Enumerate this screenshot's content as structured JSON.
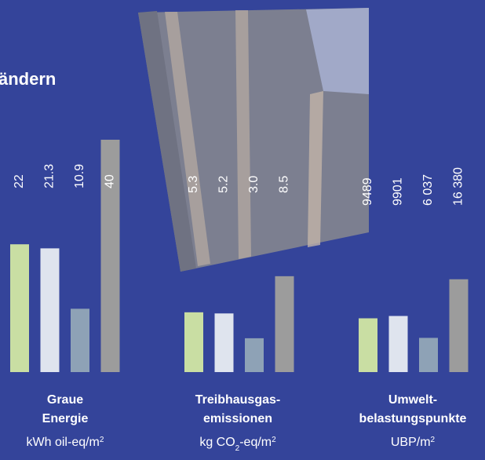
{
  "title": "ändern",
  "chart_data": [
    {
      "type": "bar",
      "title": [
        "Graue",
        "Energie"
      ],
      "unit": [
        "kWh oil-eq/m",
        "2"
      ],
      "values": [
        22,
        21.3,
        10.9,
        40
      ],
      "value_labels": [
        "22",
        "21.3",
        "10.9",
        "40"
      ],
      "colors": [
        "#c9dea3",
        "#dfe4ee",
        "#8ea2b6",
        "#9c9c9c"
      ],
      "ylim": [
        0,
        40
      ]
    },
    {
      "type": "bar",
      "title": [
        "Treibhausgas-",
        "emissionen"
      ],
      "unit": [
        "kg CO",
        "2",
        "-eq/m",
        "2"
      ],
      "values": [
        5.3,
        5.2,
        3.0,
        8.5
      ],
      "value_labels": [
        "5.3",
        "5.2",
        "3.0",
        "8.5"
      ],
      "colors": [
        "#c9dea3",
        "#dfe4ee",
        "#8ea2b6",
        "#9c9c9c"
      ],
      "ylim": [
        0,
        20.6
      ]
    },
    {
      "type": "bar",
      "title": [
        "Umwelt-",
        "belastungspunkte"
      ],
      "unit": [
        "UBP/m",
        "2"
      ],
      "values": [
        9489,
        9901,
        6037,
        16380
      ],
      "value_labels": [
        "9489",
        "9901",
        "6 037",
        "16 380"
      ],
      "colors": [
        "#c9dea3",
        "#dfe4ee",
        "#8ea2b6",
        "#9c9c9c"
      ],
      "ylim": [
        0,
        41000
      ]
    }
  ]
}
